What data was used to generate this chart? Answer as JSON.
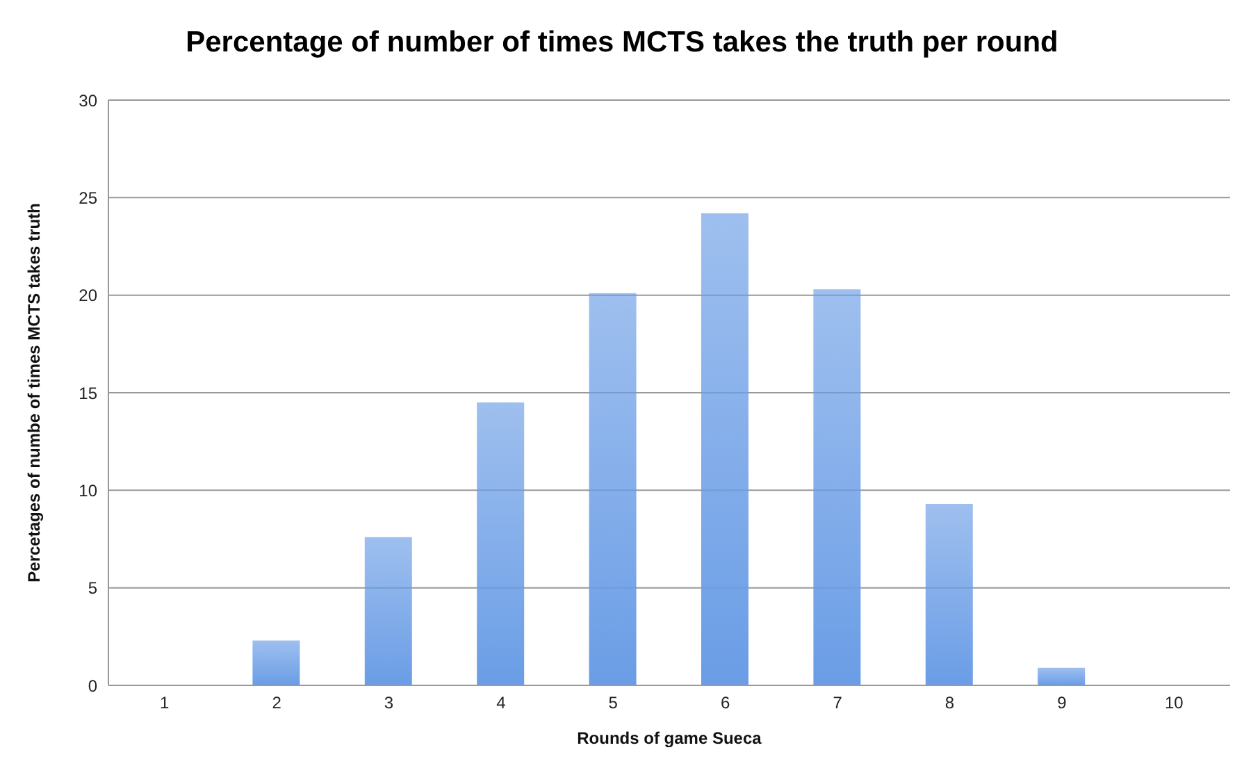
{
  "chart_data": {
    "type": "bar",
    "title": "Percentage of number of times MCTS takes the truth per round",
    "xlabel": "Rounds of game Sueca",
    "ylabel": "Percetages of numbe of times MCTS takes truth",
    "categories": [
      "1",
      "2",
      "3",
      "4",
      "5",
      "6",
      "7",
      "8",
      "9",
      "10"
    ],
    "values": [
      0,
      2.3,
      7.6,
      14.5,
      20.1,
      24.2,
      20.3,
      9.3,
      0.9,
      0
    ],
    "color": "#6a9de6",
    "ylim": [
      0,
      30
    ],
    "yticks": [
      0,
      5,
      10,
      15,
      20,
      25,
      30
    ],
    "grid": "y",
    "legend": false
  }
}
